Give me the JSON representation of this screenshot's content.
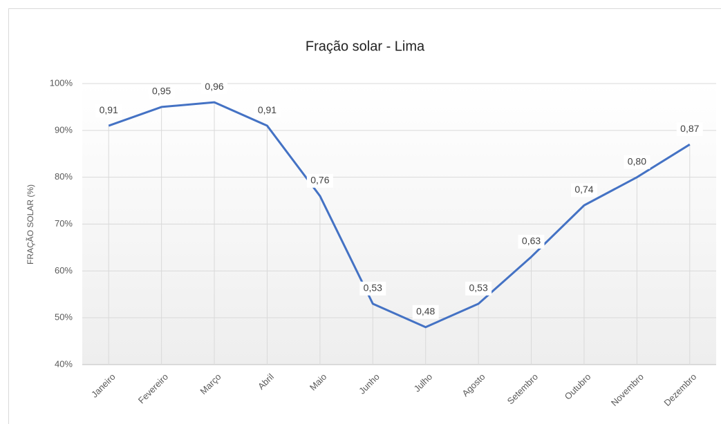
{
  "chart_data": {
    "type": "line",
    "title": "Fração solar - Lima",
    "y_label": "FRAÇÃO SOLAR (%)",
    "categories": [
      "Janeiro",
      "Fevereiro",
      "Março",
      "Abril",
      "Maio",
      "Junho",
      "Julho",
      "Agosto",
      "Setembro",
      "Outubro",
      "Novembro",
      "Dezembro"
    ],
    "series": [
      {
        "name": "Fração solar",
        "color": "#4472c4",
        "values": [
          91,
          95,
          96,
          91,
          76,
          53,
          48,
          53,
          63,
          74,
          80,
          87
        ],
        "value_labels": [
          "0,91",
          "0,95",
          "0,96",
          "0,91",
          "0,76",
          "0,53",
          "0,48",
          "0,53",
          "0,63",
          "0,74",
          "0,80",
          "0,87"
        ]
      }
    ],
    "ylim": [
      40,
      100
    ],
    "yticks": [
      {
        "value": 40,
        "label": "40%"
      },
      {
        "value": 50,
        "label": "50%"
      },
      {
        "value": 60,
        "label": "60%"
      },
      {
        "value": 70,
        "label": "70%"
      },
      {
        "value": 80,
        "label": "80%"
      },
      {
        "value": 90,
        "label": "90%"
      },
      {
        "value": 100,
        "label": "100%"
      }
    ],
    "grid": true
  }
}
